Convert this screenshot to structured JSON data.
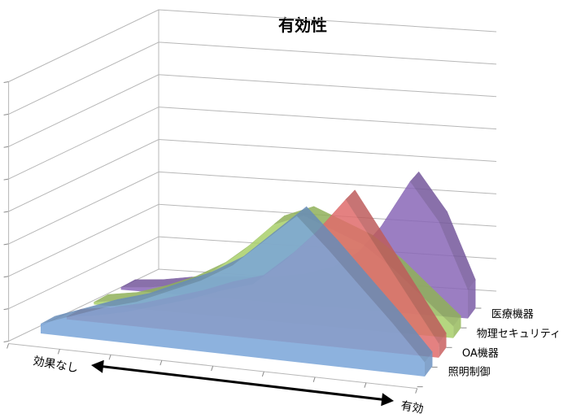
{
  "chart_data": {
    "type": "area",
    "subtype": "3d",
    "title": "有効性",
    "x_axis_end_labels": {
      "left": "効果なし",
      "right": "有効"
    },
    "x": [
      1,
      2,
      3,
      4,
      5,
      6,
      7,
      8,
      9,
      10,
      11,
      12,
      13
    ],
    "ylim": [
      0,
      10
    ],
    "gridlines": true,
    "series": [
      {
        "name": "照明制御",
        "color": "#7aa5d9",
        "values": [
          0.4,
          0.9,
          1.4,
          1.8,
          2.4,
          3.0,
          3.8,
          5.0,
          6.2,
          4.9,
          3.5,
          2.1,
          0.6
        ]
      },
      {
        "name": "OA機器",
        "color": "#e06c6c",
        "values": [
          0.1,
          0.3,
          0.6,
          1.0,
          1.4,
          1.9,
          2.3,
          3.4,
          4.7,
          6.3,
          4.4,
          2.5,
          0.6
        ]
      },
      {
        "name": "物理セキュリティ",
        "color": "#a9d06a",
        "values": [
          0.1,
          0.3,
          0.7,
          1.2,
          1.9,
          2.9,
          4.1,
          4.6,
          4.1,
          3.6,
          2.7,
          1.6,
          0.5
        ]
      },
      {
        "name": "医療機器",
        "color": "#8a68b8",
        "values": [
          0.1,
          0.2,
          0.4,
          0.5,
          0.6,
          0.7,
          0.9,
          1.3,
          2.1,
          3.6,
          5.6,
          4.0,
          1.2
        ]
      }
    ],
    "arrow": {
      "direction": "both",
      "color": "#000000"
    }
  }
}
